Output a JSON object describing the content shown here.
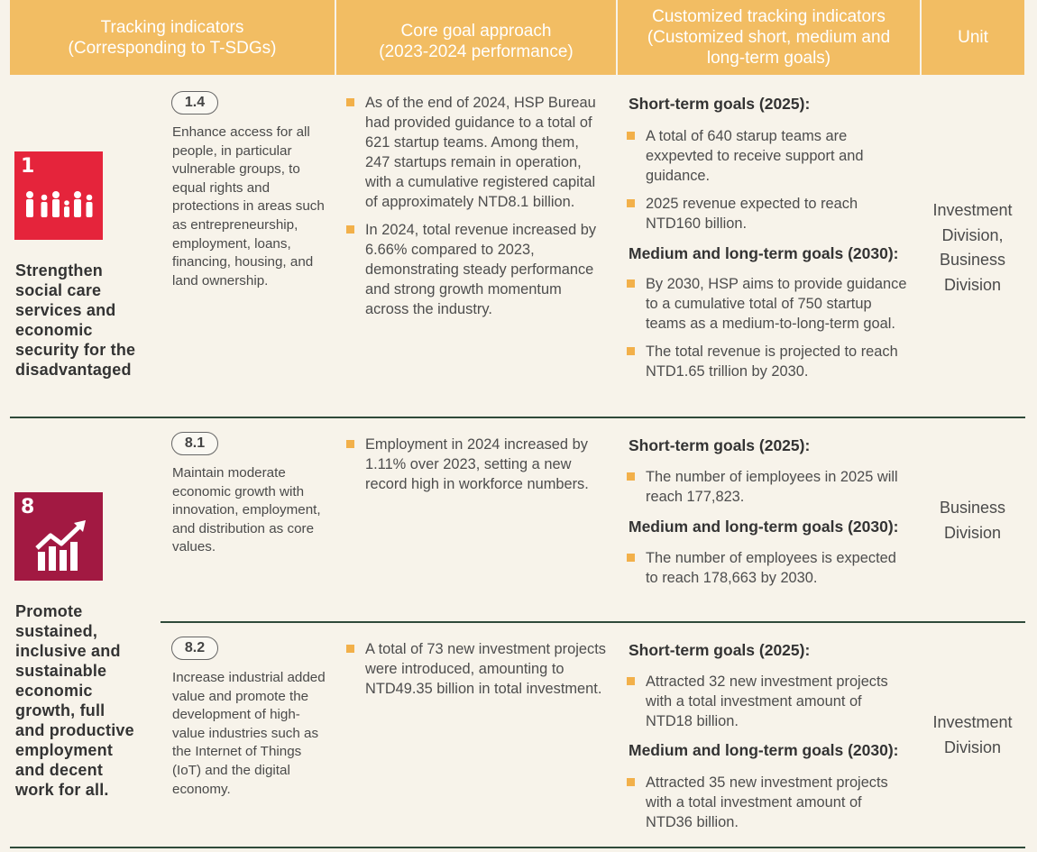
{
  "header": {
    "col1_line1": "Tracking indicators",
    "col1_line2": "(Corresponding to T-SDGs)",
    "col2_line1": "Core goal approach",
    "col2_line2": "(2023-2024 performance)",
    "col3_line1": "Customized tracking indicators",
    "col3_line2": "(Customized short, medium and",
    "col3_line3": "long-term goals)",
    "col4": "Unit"
  },
  "sections": [
    {
      "sdg_number": "1",
      "sdg_color": "#e5243b",
      "sdg_icon": "family-icon",
      "goal_title": "Strengthen social care services and economic security for the disadvantaged",
      "target_code": "1.4",
      "target_text": "Enhance access for all people, in particular vulnerable groups, to equal rights and protections in areas such as entrepreneurship, employment, loans, financing, housing, and land ownership.",
      "approach": [
        "As of the end of 2024, HSP Bureau had provided guidance to a total of 621 startup teams. Among them, 247 startups remain in operation, with a cumulative registered capital of approximately NTD8.1 billion.",
        "In 2024, total revenue increased by 6.66% compared to 2023, demonstrating steady performance and strong growth momentum across the industry."
      ],
      "short_term_heading": "Short-term goals (2025):",
      "short_term": [
        "A total of 640 starup teams are exxpevted to receive support and guidance.",
        "2025 revenue expected to reach NTD160 billion."
      ],
      "long_term_heading": "Medium and long-term goals (2030):",
      "long_term": [
        "By 2030, HSP aims to provide guidance to a cumulative total of 750 startup teams as a medium-to-long-term goal.",
        "The total revenue is projected to reach NTD1.65 trillion by 2030."
      ],
      "unit": "Investment Division, Business Division"
    },
    {
      "sdg_number": "8",
      "sdg_color": "#a21942",
      "sdg_icon": "growth-chart-icon",
      "goal_title": "Promote sustained, inclusive and sustainable economic growth, full and productive employment and decent work for all.",
      "targets": [
        {
          "target_code": "8.1",
          "target_text": "Maintain moderate economic growth with innovation, employment, and distribution as core values.",
          "approach": [
            "Employment in 2024 increased by 1.11% over 2023, setting a new record high in workforce numbers."
          ],
          "short_term_heading": "Short-term goals (2025):",
          "short_term": [
            "The number of iemployees in 2025 will reach 177,823."
          ],
          "long_term_heading": "Medium and long-term goals (2030):",
          "long_term": [
            "The number of employees is expected to reach 178,663 by 2030."
          ],
          "unit": "Business Division"
        },
        {
          "target_code": "8.2",
          "target_text": "Increase industrial added value and promote the development of high-value industries such as the Internet of Things (IoT) and the digital economy.",
          "approach": [
            "A total of 73 new investment projects were introduced, amounting to NTD49.35 billion in total investment."
          ],
          "short_term_heading": "Short-term goals (2025):",
          "short_term": [
            "Attracted 32 new investment projects with a total investment amount of NTD18 billion."
          ],
          "long_term_heading": "Medium and long-term goals (2030):",
          "long_term": [
            "Attracted 35 new investment projects with a total investment amount of NTD36 billion."
          ],
          "unit": "Investment Division"
        }
      ]
    }
  ]
}
